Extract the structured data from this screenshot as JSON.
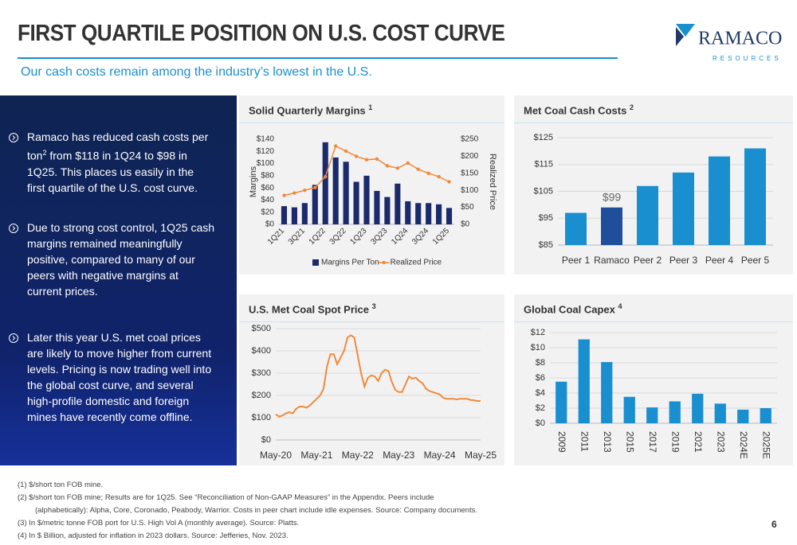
{
  "header": {
    "title": "FIRST QUARTILE POSITION ON U.S. COST CURVE",
    "subtitle": "Our cash costs remain among the industry’s lowest in the U.S.",
    "logo": "RAMACO",
    "logo_sub": "RESOURCES"
  },
  "bullets": [
    [
      "Ramaco has reduced cash costs per ton",
      "2",
      " from $118 in 1Q24 to $98 in 1Q25. This places us easily in the first quartile of the U.S. cost curve."
    ],
    [
      "Due to strong cost control, 1Q25 cash margins remained meaningfully positive, compared to many of our peers with negative margins at current prices."
    ],
    [
      "Later this year U.S. met coal prices are likely to move higher from current levels. Pricing is now trading well into the global cost curve, and several high-profile domestic and foreign mines have recently come offline."
    ]
  ],
  "footnotes": [
    "(1)  $/short ton FOB mine.",
    "(2)  $/short ton FOB mine; Results are for 1Q25. See “Reconciliation of Non-GAAP Measures” in the Appendix. Peers include",
    "(alphabetically): Alpha, Core, Coronado, Peabody, Warrior. Costs in peer chart include idle expenses. Source: Company documents.",
    "(3)  In $/metric tonne FOB port for U.S. High Vol A (monthly average). Source: Platts.",
    "(4)  In $ Billion, adjusted for inflation in 2023 dollars. Source: Jefferies, Nov. 2023."
  ],
  "page_number": "6",
  "chart_data": [
    {
      "type": "bar",
      "title": "Solid Quarterly Margins",
      "title_note": "1",
      "ylabel": "Margins",
      "y2label": "Realized Price",
      "categories": [
        "1Q21",
        null,
        "3Q21",
        null,
        "1Q22",
        null,
        "3Q22",
        null,
        "1Q23",
        null,
        "3Q23",
        null,
        "1Q24",
        null,
        "3Q24",
        null,
        "1Q25"
      ],
      "series": [
        {
          "name": "Margins Per Ton",
          "type": "bar",
          "color": "#1b2a6b",
          "values": [
            30,
            28,
            35,
            65,
            135,
            110,
            103,
            70,
            80,
            55,
            45,
            67,
            38,
            35,
            35,
            33,
            27
          ]
        },
        {
          "name": "Realized Price",
          "type": "line",
          "axis": "y2",
          "color": "#f08a3c",
          "values": [
            85,
            92,
            100,
            108,
            140,
            230,
            215,
            200,
            190,
            192,
            172,
            165,
            180,
            162,
            150,
            140,
            125
          ]
        }
      ],
      "ylim": [
        0,
        140
      ],
      "yticks": [
        {
          "value": 0,
          "label": "$0"
        },
        {
          "value": 20,
          "label": "$20"
        },
        {
          "value": 40,
          "label": "$40"
        },
        {
          "value": 60,
          "label": "$60"
        },
        {
          "value": 80,
          "label": "$80"
        },
        {
          "value": 100,
          "label": "$100"
        },
        {
          "value": 120,
          "label": "$120"
        },
        {
          "value": 140,
          "label": "$140"
        }
      ],
      "y2lim": [
        0,
        250
      ],
      "y2ticks": [
        {
          "value": 0,
          "label": "$0"
        },
        {
          "value": 50,
          "label": "$50"
        },
        {
          "value": 100,
          "label": "$100"
        },
        {
          "value": 150,
          "label": "$150"
        },
        {
          "value": 200,
          "label": "$200"
        },
        {
          "value": 250,
          "label": "$250"
        }
      ],
      "grid": false,
      "legend": "bottom"
    },
    {
      "type": "bar",
      "title": "Met Coal Cash Costs",
      "title_note": "2",
      "categories": [
        "Peer 1",
        "Ramaco",
        "Peer 2",
        "Peer 3",
        "Peer 4",
        "Peer 5"
      ],
      "values": [
        97,
        99,
        107,
        112,
        118,
        121
      ],
      "value_labels": [
        null,
        "$99",
        null,
        null,
        null,
        null
      ],
      "colors": [
        "#1a8fd0",
        "#1f4e9a",
        "#1a8fd0",
        "#1a8fd0",
        "#1a8fd0",
        "#1a8fd0"
      ],
      "ylim": [
        85,
        125
      ],
      "yticks": [
        {
          "value": 85,
          "label": "$85"
        },
        {
          "value": 95,
          "label": "$95"
        },
        {
          "value": 105,
          "label": "$105"
        },
        {
          "value": 115,
          "label": "$115"
        },
        {
          "value": 125,
          "label": "$125"
        }
      ],
      "grid": true
    },
    {
      "type": "line",
      "title": "U.S. Met Coal Spot Price",
      "title_note": "3",
      "categories": [
        "May-20",
        null,
        null,
        null,
        null,
        null,
        null,
        null,
        null,
        null,
        null,
        null,
        "May-21",
        null,
        null,
        null,
        null,
        null,
        null,
        null,
        null,
        null,
        null,
        null,
        "May-22",
        null,
        null,
        null,
        null,
        null,
        null,
        null,
        null,
        null,
        null,
        null,
        "May-23",
        null,
        null,
        null,
        null,
        null,
        null,
        null,
        null,
        null,
        null,
        null,
        "May-24",
        null,
        null,
        null,
        null,
        null,
        null,
        null,
        null,
        null,
        null,
        null,
        "May-25"
      ],
      "values": [
        115,
        105,
        110,
        120,
        125,
        120,
        140,
        150,
        150,
        145,
        155,
        170,
        185,
        200,
        230,
        330,
        385,
        385,
        340,
        370,
        400,
        460,
        470,
        460,
        380,
        300,
        240,
        280,
        290,
        285,
        265,
        300,
        315,
        310,
        260,
        225,
        215,
        215,
        250,
        285,
        275,
        280,
        265,
        255,
        230,
        220,
        215,
        210,
        205,
        190,
        185,
        185,
        185,
        182,
        185,
        185,
        185,
        180,
        178,
        175,
        175
      ],
      "color": "#f08a3c",
      "ylim": [
        0,
        500
      ],
      "yticks": [
        {
          "value": 0,
          "label": "$0"
        },
        {
          "value": 100,
          "label": "$100"
        },
        {
          "value": 200,
          "label": "$200"
        },
        {
          "value": 300,
          "label": "$300"
        },
        {
          "value": 400,
          "label": "$400"
        },
        {
          "value": 500,
          "label": "$500"
        }
      ],
      "grid": true
    },
    {
      "type": "bar",
      "title": "Global Coal Capex",
      "title_note": "4",
      "categories": [
        "2009",
        "2011",
        "2013",
        "2015",
        "2017",
        "2019",
        "2021",
        "2023",
        "2024E",
        "2025E"
      ],
      "values": [
        5.5,
        11.1,
        8.1,
        3.5,
        2.1,
        2.9,
        3.9,
        2.6,
        1.8,
        2.0
      ],
      "color": "#1a8fd0",
      "ylim": [
        0,
        12
      ],
      "yticks": [
        {
          "value": 0,
          "label": "$0"
        },
        {
          "value": 2,
          "label": "$2"
        },
        {
          "value": 4,
          "label": "$4"
        },
        {
          "value": 6,
          "label": "$6"
        },
        {
          "value": 8,
          "label": "$8"
        },
        {
          "value": 10,
          "label": "$10"
        },
        {
          "value": 12,
          "label": "$12"
        }
      ],
      "grid": true
    }
  ]
}
